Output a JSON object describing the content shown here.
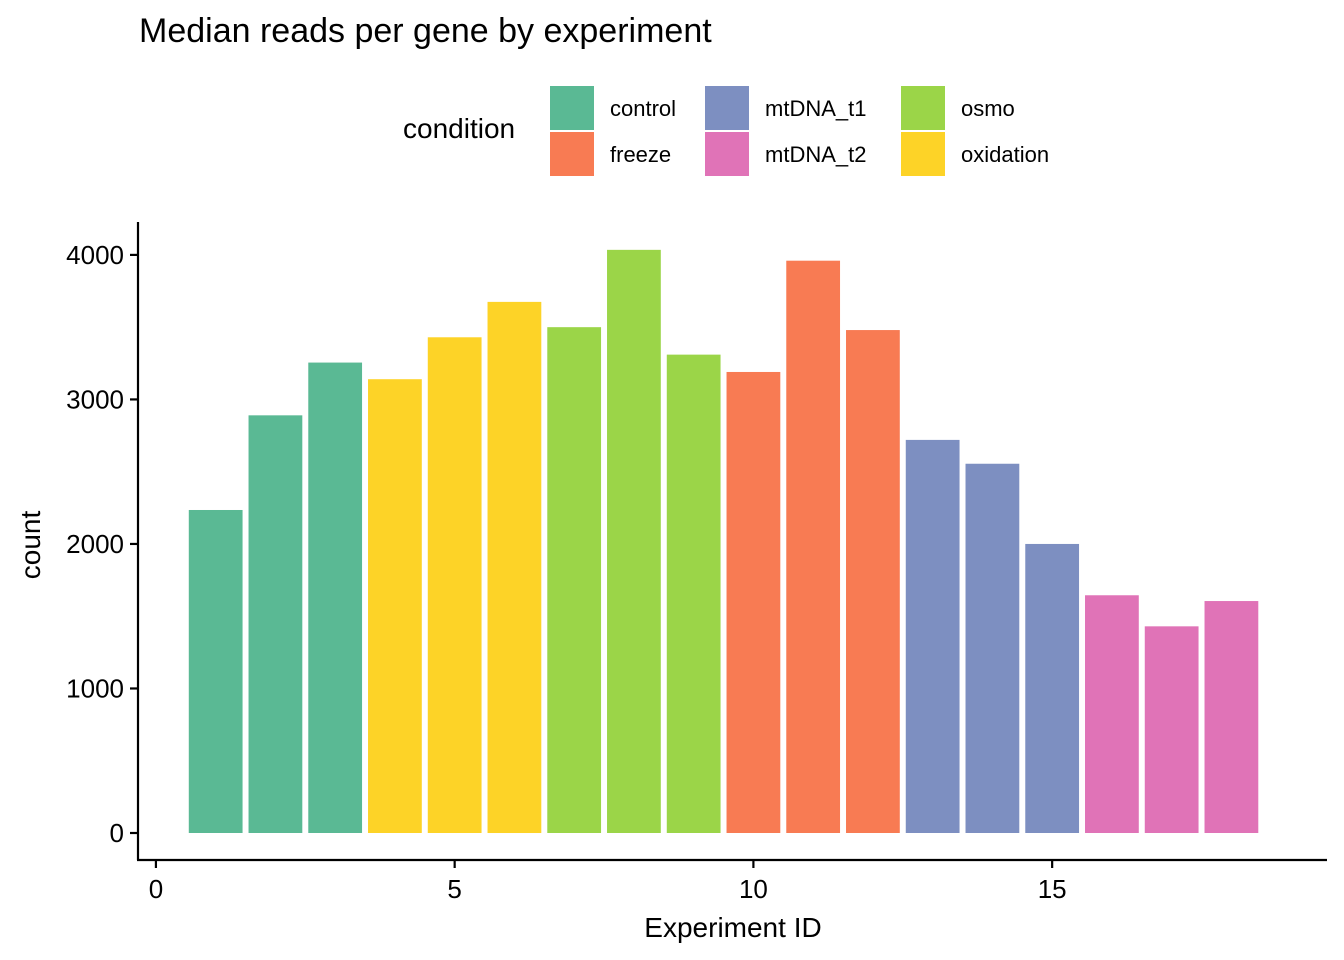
{
  "chart_data": {
    "type": "bar",
    "title": "Median reads per gene by experiment",
    "xlabel": "Experiment ID",
    "ylabel": "count",
    "xlim": [
      -0.3,
      19.6
    ],
    "ylim": [
      0,
      4200
    ],
    "x_ticks": [
      0,
      5,
      10,
      15
    ],
    "y_ticks": [
      0,
      1000,
      2000,
      3000,
      4000
    ],
    "grid": false,
    "legend": {
      "title": "condition",
      "placement": "top",
      "entries": [
        {
          "label": "control",
          "color": "#5AB994"
        },
        {
          "label": "freeze",
          "color": "#F87B53"
        },
        {
          "label": "mtDNA_t1",
          "color": "#7D8FC1"
        },
        {
          "label": "mtDNA_t2",
          "color": "#E073B7"
        },
        {
          "label": "osmo",
          "color": "#9BD548"
        },
        {
          "label": "oxidation",
          "color": "#FDD327"
        }
      ]
    },
    "x": [
      1,
      2,
      3,
      4,
      5,
      6,
      7,
      8,
      9,
      10,
      11,
      12,
      13,
      14,
      15,
      16,
      17,
      18
    ],
    "values": [
      2235,
      2890,
      3255,
      3140,
      3430,
      3675,
      3500,
      4035,
      3310,
      3190,
      3960,
      3480,
      2720,
      2555,
      2000,
      1645,
      1430,
      1605
    ],
    "conditions": [
      "control",
      "control",
      "control",
      "oxidation",
      "oxidation",
      "oxidation",
      "osmo",
      "osmo",
      "osmo",
      "freeze",
      "freeze",
      "freeze",
      "mtDNA_t1",
      "mtDNA_t1",
      "mtDNA_t1",
      "mtDNA_t2",
      "mtDNA_t2",
      "mtDNA_t2"
    ]
  }
}
